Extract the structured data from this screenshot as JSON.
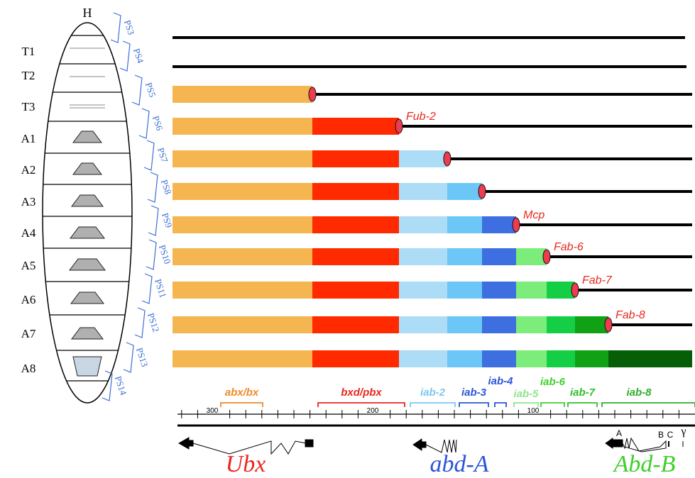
{
  "embryo": {
    "head": "H",
    "segments": [
      "T1",
      "T2",
      "T3",
      "A1",
      "A2",
      "A3",
      "A4",
      "A5",
      "A6",
      "A7",
      "A8"
    ],
    "parasegments": [
      "PS3",
      "PS4",
      "PS5",
      "PS6",
      "PS7",
      "PS8",
      "PS9",
      "PS10",
      "PS11",
      "PS12",
      "PS13",
      "PS14"
    ]
  },
  "boundaries": [
    "Fub-2",
    "Mcp",
    "Fab-6",
    "Fab-7",
    "Fab-8"
  ],
  "domains": [
    "abx/bx",
    "bxd/pbx",
    "iab-2",
    "iab-3",
    "iab-4",
    "iab-5",
    "iab-6",
    "iab-7",
    "iab-8"
  ],
  "scale": [
    "300",
    "200",
    "100"
  ],
  "promoters": [
    "A",
    "B",
    "C",
    "γ"
  ],
  "genes": [
    "Ubx",
    "abd-A",
    "Abd-B"
  ]
}
